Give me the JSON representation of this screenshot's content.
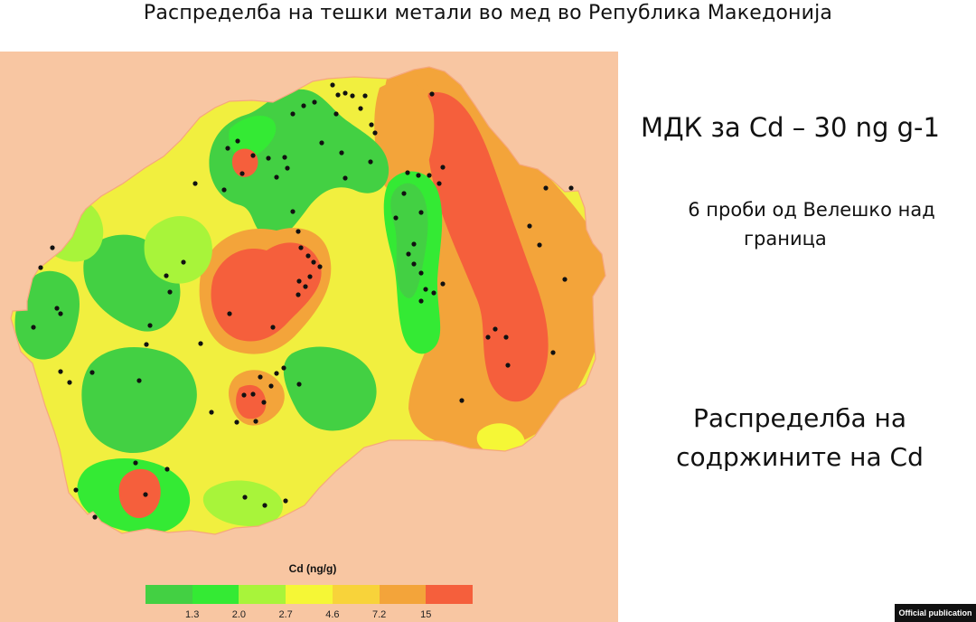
{
  "title": "Распределба на тешки метали во мед во Република Македонија",
  "annotations": {
    "mdk": "МДК за Cd – 30 ng g-1",
    "samples_line1": "6 проби од Велешко над",
    "samples_line2": "граница",
    "distribution_line1": "Распределба на",
    "distribution_line2": "содржините на Cd"
  },
  "legend": {
    "title": "Cd (ng/g)",
    "colors": [
      "#43d043",
      "#34ea34",
      "#a8f43a",
      "#f5f736",
      "#f8d33a",
      "#f3a43a",
      "#f55f3c"
    ],
    "ticks": [
      "1.3",
      "2.0",
      "2.7",
      "4.6",
      "7.2",
      "15"
    ]
  },
  "map": {
    "background_color": "#f8c6a2",
    "country_fill": "#f1ef3f",
    "sample_point_color": "#111111"
  },
  "badge": "Official publication"
}
